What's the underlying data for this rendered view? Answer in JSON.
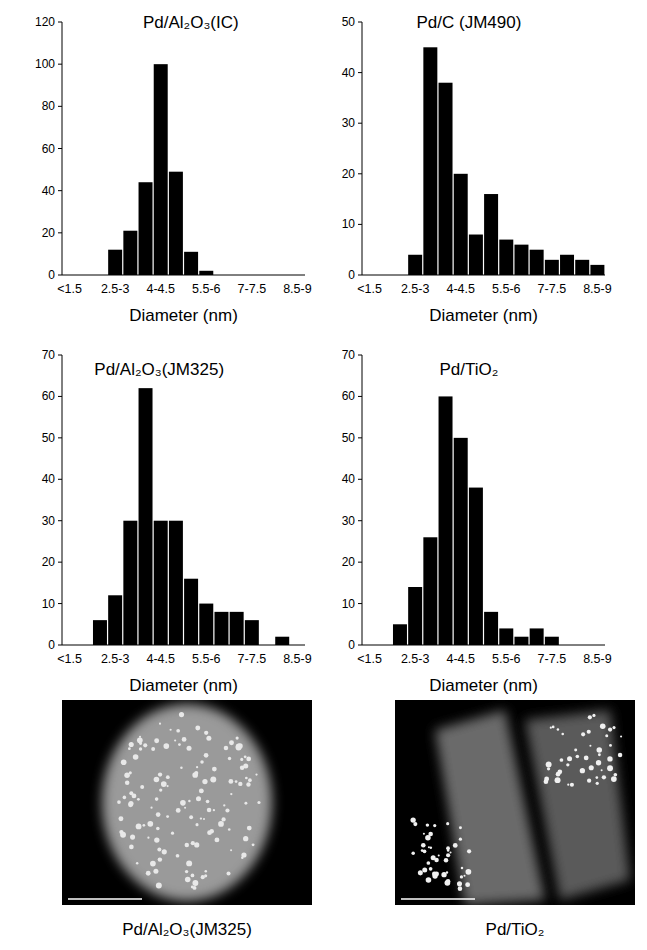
{
  "chart_data": [
    {
      "type": "bar",
      "title": "Pd/Al₂O₃(IC)",
      "x_label": "Diameter (nm)",
      "categories": [
        "<1.5",
        null,
        null,
        "2.5-3",
        null,
        null,
        "4-4.5",
        null,
        null,
        "5.5-6",
        null,
        null,
        "7-7.5",
        null,
        null,
        "8.5-9"
      ],
      "values": [
        0,
        0,
        0,
        12,
        21,
        44,
        100,
        49,
        11,
        2,
        0,
        0,
        0,
        0,
        0,
        0
      ],
      "color": "#000000",
      "ylim": [
        0,
        120
      ],
      "yticks": [
        0,
        20,
        40,
        60,
        80,
        100,
        120
      ],
      "grid": false
    },
    {
      "type": "bar",
      "title": "Pd/C (JM490)",
      "x_label": "Diameter (nm)",
      "categories": [
        "<1.5",
        null,
        null,
        "2.5-3",
        null,
        null,
        "4-4.5",
        null,
        null,
        "5.5-6",
        null,
        null,
        "7-7.5",
        null,
        null,
        "8.5-9"
      ],
      "values": [
        0,
        0,
        0,
        4,
        45,
        38,
        20,
        8,
        16,
        7,
        6,
        5,
        3,
        4,
        3,
        2
      ],
      "color": "#000000",
      "ylim": [
        0,
        50
      ],
      "yticks": [
        0,
        10,
        20,
        30,
        40,
        50
      ],
      "grid": false
    },
    {
      "type": "bar",
      "title": "Pd/Al₂O₃(JM325)",
      "x_label": "Diameter (nm)",
      "categories": [
        "<1.5",
        null,
        null,
        "2.5-3",
        null,
        null,
        "4-4.5",
        null,
        null,
        "5.5-6",
        null,
        null,
        "7-7.5",
        null,
        null,
        "8.5-9"
      ],
      "values": [
        0,
        0,
        6,
        12,
        30,
        62,
        30,
        30,
        16,
        10,
        8,
        8,
        6,
        0,
        2,
        0
      ],
      "color": "#000000",
      "ylim": [
        0,
        70
      ],
      "yticks": [
        0,
        10,
        20,
        30,
        40,
        50,
        60,
        70
      ],
      "grid": false
    },
    {
      "type": "bar",
      "title": "Pd/TiO₂",
      "x_label": "Diameter (nm)",
      "categories": [
        "<1.5",
        null,
        null,
        "2.5-3",
        null,
        null,
        "4-4.5",
        null,
        null,
        "5.5-6",
        null,
        null,
        "7-7.5",
        null,
        null,
        "8.5-9"
      ],
      "values": [
        0,
        0,
        5,
        14,
        26,
        60,
        50,
        38,
        8,
        4,
        2,
        4,
        2,
        0,
        0,
        0
      ],
      "color": "#000000",
      "ylim": [
        0,
        70
      ],
      "yticks": [
        0,
        10,
        20,
        30,
        40,
        50,
        60,
        70
      ],
      "grid": false
    }
  ],
  "micrographs": [
    {
      "caption": "Pd/Al₂O₃(JM325)"
    },
    {
      "caption": "Pd/TiO₂"
    }
  ]
}
